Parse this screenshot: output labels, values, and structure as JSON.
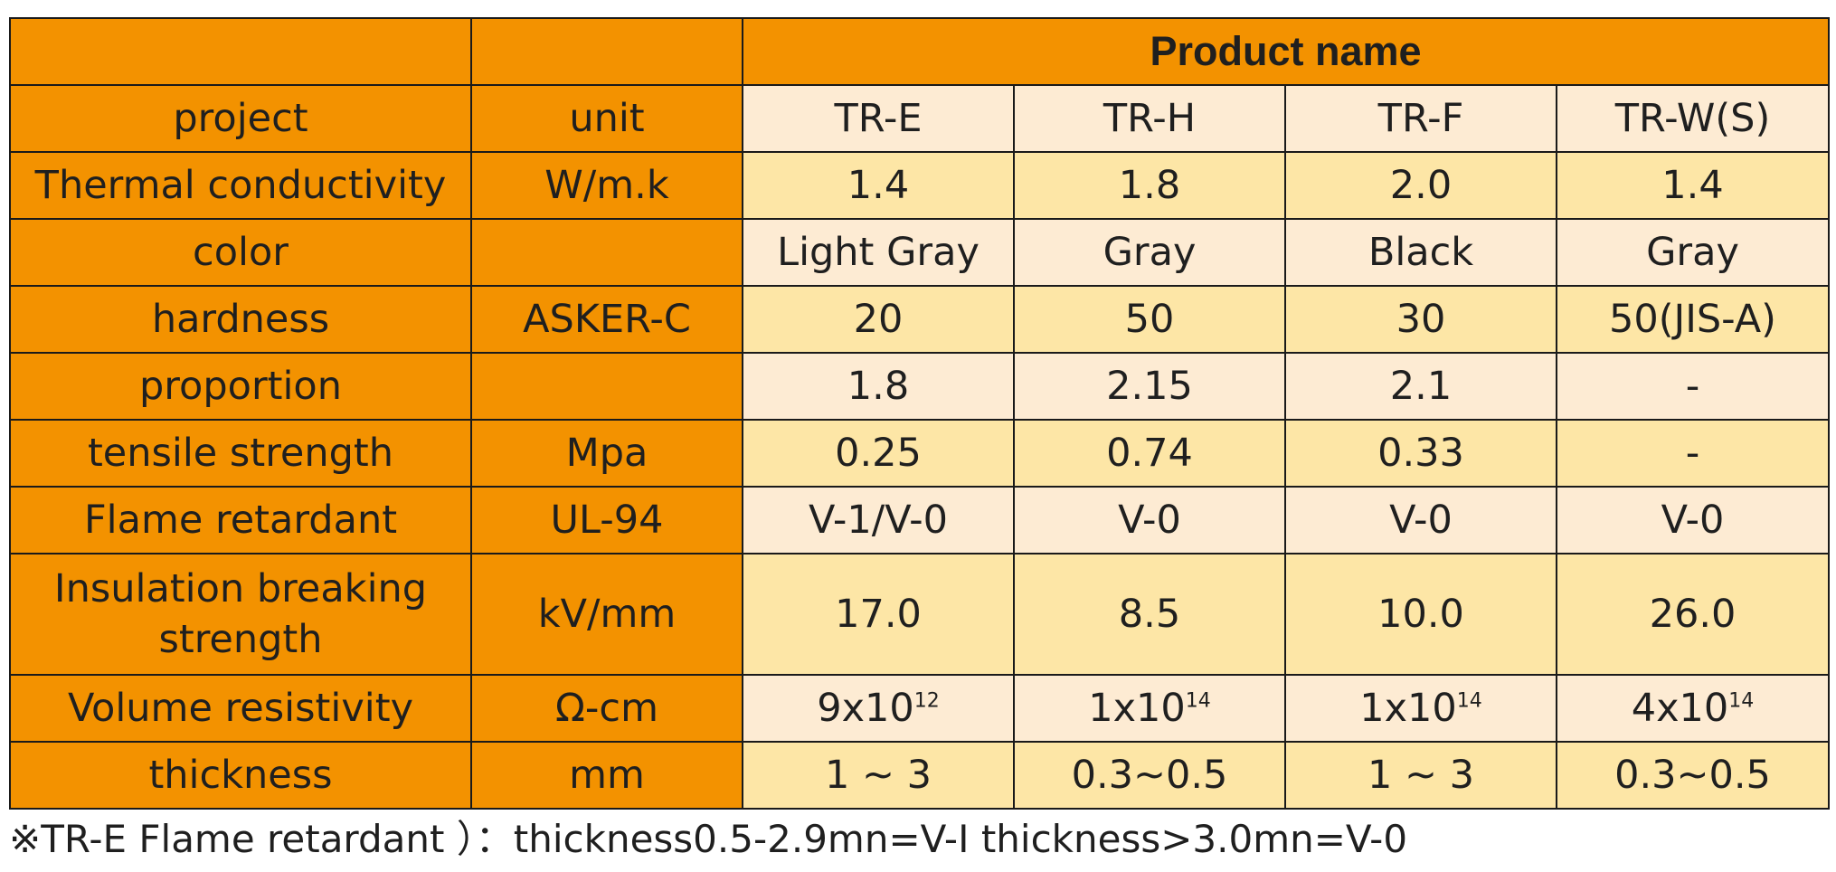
{
  "header": {
    "product_name": "Product name",
    "project": "project",
    "unit": "unit",
    "products": [
      "TR-E",
      "TR-H",
      "TR-F",
      "TR-W(S)"
    ]
  },
  "rows": [
    {
      "label": "Thermal conductivity",
      "unit": "W/m.k",
      "values": [
        "1.4",
        "1.8",
        "2.0",
        "1.4"
      ]
    },
    {
      "label": "color",
      "unit": "",
      "values": [
        "Light Gray",
        "Gray",
        "Black",
        "Gray"
      ]
    },
    {
      "label": "hardness",
      "unit": "ASKER-C",
      "values": [
        "20",
        "50",
        "30",
        "50(JIS-A)"
      ]
    },
    {
      "label": "proportion",
      "unit": "",
      "values": [
        "1.8",
        "2.15",
        "2.1",
        "-"
      ]
    },
    {
      "label": "tensile strength",
      "unit": "Mpa",
      "values": [
        "0.25",
        "0.74",
        "0.33",
        "-"
      ]
    },
    {
      "label": "Flame retardant",
      "unit": "UL-94",
      "values": [
        "V-1/V-0",
        "V-0",
        "V-0",
        "V-0"
      ]
    },
    {
      "label": "Insulation breaking strength",
      "unit": "kV/mm",
      "values": [
        "17.0",
        "8.5",
        "10.0",
        "26.0"
      ]
    },
    {
      "label": "Volume resistivity",
      "unit": "Ω-cm",
      "values": [
        {
          "base": "9x10",
          "exp": "12"
        },
        {
          "base": "1x10",
          "exp": "14"
        },
        {
          "base": "1x10",
          "exp": "14"
        },
        {
          "base": "4x10",
          "exp": "14"
        }
      ]
    },
    {
      "label": "thickness",
      "unit": "mm",
      "values": [
        "1 ~ 3",
        "0.3~0.5",
        "1 ~ 3",
        "0.3~0.5"
      ]
    }
  ],
  "footnote": "※TR-E Flame retardant ）：thickness0.5-2.9mn=V-I thickness>3.0mn=V-0",
  "colors": {
    "header_orange": "#f39200",
    "row_light": "#fdebd3",
    "row_dark": "#fde6a6",
    "border": "#1a1a1a"
  }
}
